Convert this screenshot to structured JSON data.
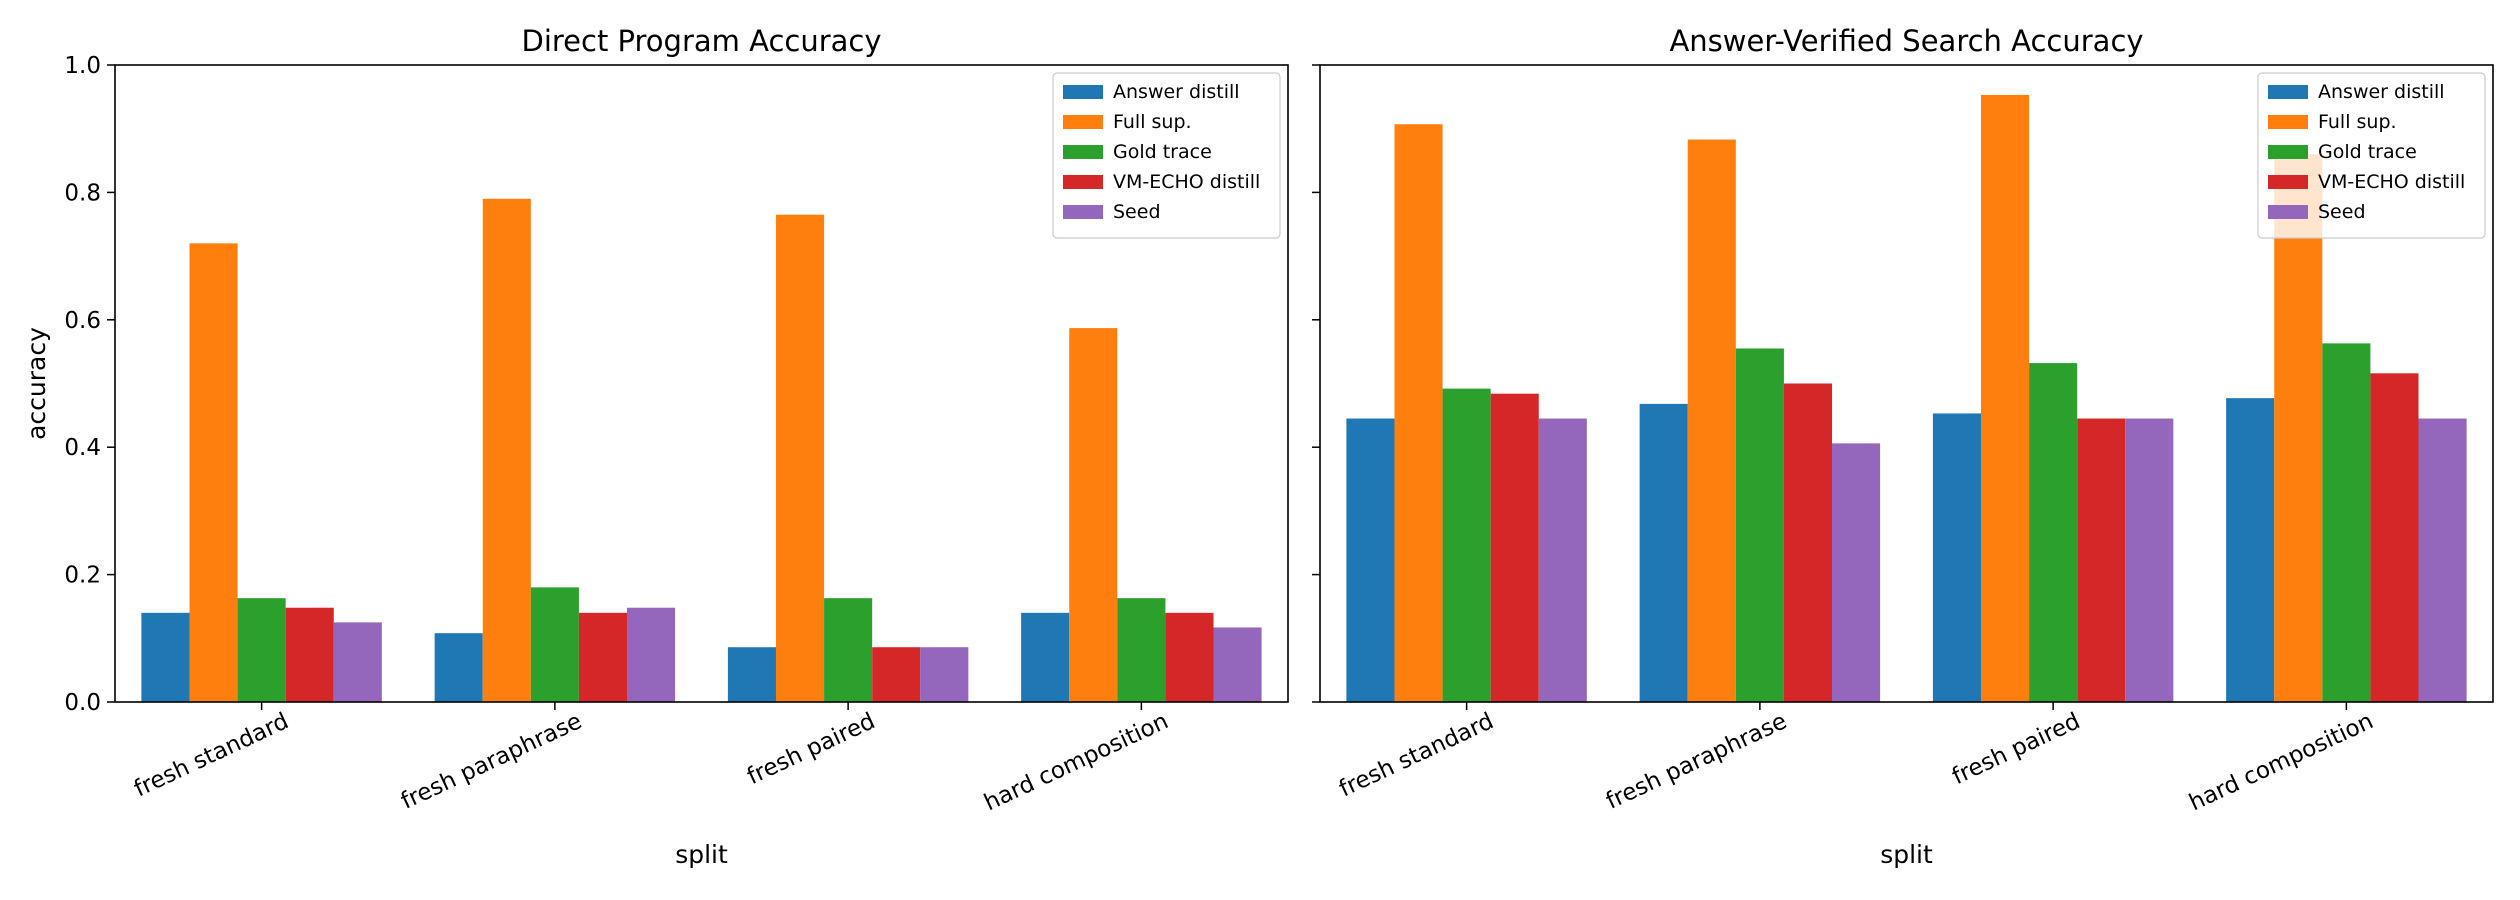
{
  "chart_data": [
    {
      "type": "bar",
      "title": "Direct Program Accuracy",
      "xlabel": "split",
      "ylabel": "accuracy",
      "ylim": [
        0,
        1.0
      ],
      "yticks": [
        "0.0",
        "0.2",
        "0.4",
        "0.6",
        "0.8",
        "1.0"
      ],
      "categories": [
        "fresh standard",
        "fresh paraphrase",
        "fresh paired",
        "hard composition"
      ],
      "legend_position": "top-right",
      "series": [
        {
          "name": "Answer distill",
          "color": "#1f77b4",
          "values": [
            0.14,
            0.108,
            0.086,
            0.14
          ]
        },
        {
          "name": "Full sup.",
          "color": "#ff7f0e",
          "values": [
            0.72,
            0.79,
            0.765,
            0.587
          ]
        },
        {
          "name": "Gold trace",
          "color": "#2ca02c",
          "values": [
            0.163,
            0.18,
            0.163,
            0.163
          ]
        },
        {
          "name": "VM-ECHO distill",
          "color": "#d62728",
          "values": [
            0.148,
            0.14,
            0.086,
            0.14
          ]
        },
        {
          "name": "Seed",
          "color": "#9467bd",
          "values": [
            0.125,
            0.148,
            0.086,
            0.117
          ]
        }
      ]
    },
    {
      "type": "bar",
      "title": "Answer-Verified Search Accuracy",
      "xlabel": "split",
      "ylabel": "",
      "ylim": [
        0,
        1.0
      ],
      "shared_y": true,
      "categories": [
        "fresh standard",
        "fresh paraphrase",
        "fresh paired",
        "hard composition"
      ],
      "legend_position": "top-right",
      "series": [
        {
          "name": "Answer distill",
          "color": "#1f77b4",
          "values": [
            0.445,
            0.468,
            0.453,
            0.477
          ]
        },
        {
          "name": "Full sup.",
          "color": "#ff7f0e",
          "values": [
            0.907,
            0.883,
            0.953,
            0.86
          ]
        },
        {
          "name": "Gold trace",
          "color": "#2ca02c",
          "values": [
            0.492,
            0.555,
            0.532,
            0.563
          ]
        },
        {
          "name": "VM-ECHO distill",
          "color": "#d62728",
          "values": [
            0.484,
            0.5,
            0.445,
            0.516
          ]
        },
        {
          "name": "Seed",
          "color": "#9467bd",
          "values": [
            0.445,
            0.406,
            0.445,
            0.445
          ]
        }
      ]
    }
  ]
}
